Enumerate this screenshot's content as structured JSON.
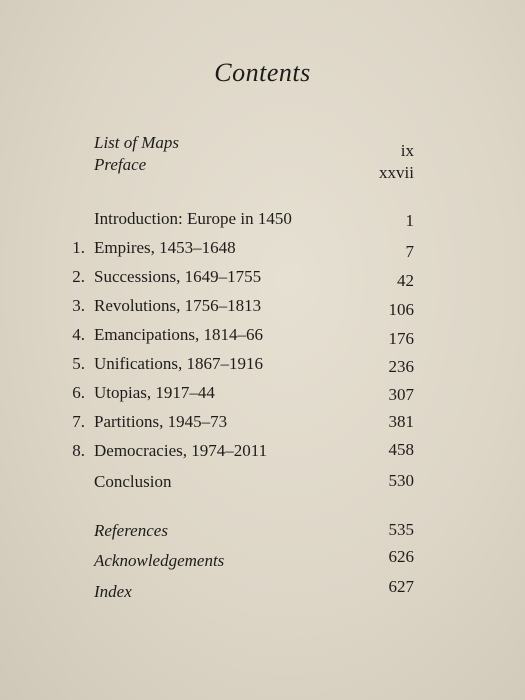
{
  "title": "Contents",
  "front_matter": [
    {
      "label": "List of Maps",
      "page": "ix"
    },
    {
      "label": "Preface",
      "page": "xxvii"
    }
  ],
  "introduction": {
    "label": "Introduction: Europe in 1450",
    "page": "1"
  },
  "chapters": [
    {
      "number": "1.",
      "label": "Empires, 1453–1648",
      "page": "7"
    },
    {
      "number": "2.",
      "label": "Successions, 1649–1755",
      "page": "42"
    },
    {
      "number": "3.",
      "label": "Revolutions, 1756–1813",
      "page": "106"
    },
    {
      "number": "4.",
      "label": "Emancipations, 1814–66",
      "page": "176"
    },
    {
      "number": "5.",
      "label": "Unifications, 1867–1916",
      "page": "236"
    },
    {
      "number": "6.",
      "label": "Utopias, 1917–44",
      "page": "307"
    },
    {
      "number": "7.",
      "label": "Partitions, 1945–73",
      "page": "381"
    },
    {
      "number": "8.",
      "label": "Democracies, 1974–2011",
      "page": "458"
    }
  ],
  "conclusion": {
    "label": "Conclusion",
    "page": "530"
  },
  "back_matter": [
    {
      "label": "References",
      "page": "535"
    },
    {
      "label": "Acknowledgements",
      "page": "626"
    },
    {
      "label": "Index",
      "page": "627"
    }
  ]
}
